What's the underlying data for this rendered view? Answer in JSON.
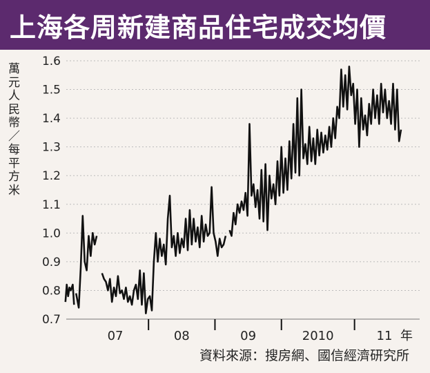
{
  "title": "上海各周新建商品住宅成交均價",
  "source": "資料來源：搜房網、國信經濟研究所",
  "colors": {
    "title_bg": "#5c2a6e",
    "line": "#111111",
    "grid": "#bbbbbb"
  },
  "chart_data": {
    "type": "line",
    "title": "上海各周新建商品住宅成交均價",
    "ylabel": "萬元人民幣／每平方米",
    "xlabel": "年",
    "ylim": [
      0.7,
      1.6
    ],
    "yticks": [
      0.7,
      0.8,
      0.9,
      1.0,
      1.1,
      1.2,
      1.3,
      1.4,
      1.5,
      1.6
    ],
    "ytick_labels": [
      "0.7",
      "0.8",
      "0.9",
      "1.0",
      "1.1",
      "1.2",
      "1.3",
      "1.4",
      "1.5",
      "1.6"
    ],
    "xlim": [
      2006.45,
      2011.83
    ],
    "x_labels": [
      {
        "label": "07",
        "x": 2007.25
      },
      {
        "label": "08",
        "x": 2008.25
      },
      {
        "label": "09",
        "x": 2009.25
      },
      {
        "label": "2010",
        "x": 2010.3
      },
      {
        "label": "11",
        "x": 2011.3
      }
    ],
    "x_ticks": [
      2007.75,
      2008.75,
      2009.75,
      2010.85
    ],
    "segments": [
      [
        [
          2006.5,
          0.76
        ],
        [
          2006.52,
          0.82
        ],
        [
          2006.54,
          0.78
        ],
        [
          2006.56,
          0.81
        ],
        [
          2006.58,
          0.8
        ],
        [
          2006.61,
          0.82
        ],
        [
          2006.63,
          0.75
        ]
      ],
      [
        [
          2006.66,
          0.79
        ],
        [
          2006.7,
          0.74
        ],
        [
          2006.73,
          0.88
        ],
        [
          2006.76,
          1.06
        ],
        [
          2006.79,
          0.9
        ],
        [
          2006.82,
          0.87
        ],
        [
          2006.85,
          0.99
        ],
        [
          2006.88,
          0.92
        ],
        [
          2006.91,
          1.0
        ],
        [
          2006.94,
          0.96
        ],
        [
          2006.97,
          0.99
        ]
      ],
      [
        [
          2007.05,
          0.86
        ],
        [
          2007.08,
          0.84
        ],
        [
          2007.11,
          0.83
        ],
        [
          2007.14,
          0.8
        ],
        [
          2007.17,
          0.84
        ],
        [
          2007.2,
          0.76
        ],
        [
          2007.23,
          0.81
        ],
        [
          2007.26,
          0.78
        ],
        [
          2007.29,
          0.85
        ],
        [
          2007.32,
          0.79
        ],
        [
          2007.35,
          0.8
        ],
        [
          2007.38,
          0.77
        ],
        [
          2007.41,
          0.81
        ],
        [
          2007.44,
          0.76
        ],
        [
          2007.47,
          0.78
        ],
        [
          2007.5,
          0.75
        ],
        [
          2007.53,
          0.8
        ],
        [
          2007.56,
          0.82
        ],
        [
          2007.59,
          0.77
        ],
        [
          2007.62,
          0.87
        ],
        [
          2007.65,
          0.75
        ],
        [
          2007.68,
          0.86
        ],
        [
          2007.71,
          0.72
        ],
        [
          2007.74,
          0.77
        ],
        [
          2007.77,
          0.78
        ],
        [
          2007.8,
          0.73
        ],
        [
          2007.83,
          0.9
        ],
        [
          2007.86,
          1.0
        ],
        [
          2007.89,
          0.9
        ],
        [
          2007.92,
          0.98
        ],
        [
          2007.95,
          0.92
        ],
        [
          2007.98,
          0.96
        ],
        [
          2008.01,
          0.89
        ],
        [
          2008.04,
          1.05
        ],
        [
          2008.07,
          1.13
        ],
        [
          2008.1,
          0.95
        ],
        [
          2008.13,
          0.99
        ],
        [
          2008.16,
          0.92
        ],
        [
          2008.19,
          1.0
        ],
        [
          2008.22,
          0.93
        ],
        [
          2008.25,
          0.98
        ],
        [
          2008.28,
          0.95
        ],
        [
          2008.31,
          1.05
        ],
        [
          2008.34,
          0.94
        ],
        [
          2008.37,
          1.08
        ],
        [
          2008.4,
          0.96
        ],
        [
          2008.43,
          1.05
        ],
        [
          2008.46,
          0.97
        ],
        [
          2008.49,
          1.02
        ],
        [
          2008.52,
          0.95
        ],
        [
          2008.55,
          1.06
        ],
        [
          2008.58,
          0.97
        ],
        [
          2008.61,
          1.03
        ],
        [
          2008.64,
          0.99
        ],
        [
          2008.67,
          1.0
        ],
        [
          2008.7,
          1.16
        ],
        [
          2008.73,
          1.0
        ],
        [
          2008.76,
          0.97
        ],
        [
          2008.79,
          0.92
        ],
        [
          2008.82,
          0.98
        ],
        [
          2008.85,
          0.95
        ],
        [
          2008.88,
          0.96
        ],
        [
          2008.91,
          0.99
        ]
      ],
      [
        [
          2008.97,
          1.01
        ],
        [
          2009.0,
          0.99
        ],
        [
          2009.03,
          1.07
        ],
        [
          2009.06,
          1.03
        ],
        [
          2009.09,
          1.1
        ],
        [
          2009.12,
          1.07
        ],
        [
          2009.15,
          1.11
        ],
        [
          2009.18,
          1.08
        ],
        [
          2009.21,
          1.14
        ],
        [
          2009.24,
          1.06
        ],
        [
          2009.27,
          1.38
        ],
        [
          2009.3,
          1.13
        ],
        [
          2009.33,
          1.17
        ],
        [
          2009.36,
          1.09
        ],
        [
          2009.39,
          1.15
        ],
        [
          2009.42,
          1.05
        ],
        [
          2009.45,
          1.22
        ],
        [
          2009.48,
          1.04
        ],
        [
          2009.51,
          1.24
        ],
        [
          2009.54,
          1.01
        ],
        [
          2009.57,
          1.2
        ],
        [
          2009.6,
          1.12
        ],
        [
          2009.63,
          1.17
        ],
        [
          2009.66,
          1.1
        ],
        [
          2009.69,
          1.25
        ],
        [
          2009.72,
          1.13
        ],
        [
          2009.75,
          1.3
        ],
        [
          2009.78,
          1.14
        ],
        [
          2009.81,
          1.26
        ],
        [
          2009.84,
          1.15
        ],
        [
          2009.87,
          1.32
        ],
        [
          2009.9,
          1.19
        ],
        [
          2009.93,
          1.38
        ],
        [
          2009.96,
          1.21
        ],
        [
          2009.99,
          1.47
        ],
        [
          2010.02,
          1.2
        ],
        [
          2010.05,
          1.5
        ],
        [
          2010.08,
          1.26
        ],
        [
          2010.11,
          1.31
        ],
        [
          2010.14,
          1.24
        ],
        [
          2010.17,
          1.37
        ],
        [
          2010.2,
          1.25
        ],
        [
          2010.23,
          1.33
        ],
        [
          2010.26,
          1.24
        ],
        [
          2010.29,
          1.36
        ],
        [
          2010.32,
          1.27
        ],
        [
          2010.35,
          1.35
        ],
        [
          2010.38,
          1.28
        ],
        [
          2010.41,
          1.34
        ],
        [
          2010.44,
          1.29
        ],
        [
          2010.47,
          1.37
        ],
        [
          2010.5,
          1.3
        ],
        [
          2010.53,
          1.4
        ],
        [
          2010.56,
          1.33
        ],
        [
          2010.59,
          1.44
        ],
        [
          2010.62,
          1.4
        ],
        [
          2010.65,
          1.57
        ],
        [
          2010.68,
          1.44
        ],
        [
          2010.71,
          1.55
        ],
        [
          2010.74,
          1.43
        ],
        [
          2010.77,
          1.58
        ],
        [
          2010.8,
          1.48
        ],
        [
          2010.83,
          1.52
        ],
        [
          2010.86,
          1.38
        ],
        [
          2010.89,
          1.5
        ],
        [
          2010.92,
          1.3
        ],
        [
          2010.95,
          1.47
        ],
        [
          2010.98,
          1.36
        ],
        [
          2011.01,
          1.41
        ],
        [
          2011.04,
          1.34
        ],
        [
          2011.07,
          1.45
        ],
        [
          2011.1,
          1.38
        ],
        [
          2011.13,
          1.5
        ],
        [
          2011.16,
          1.4
        ],
        [
          2011.19,
          1.48
        ],
        [
          2011.22,
          1.38
        ],
        [
          2011.25,
          1.52
        ],
        [
          2011.28,
          1.42
        ],
        [
          2011.31,
          1.5
        ],
        [
          2011.34,
          1.4
        ],
        [
          2011.37,
          1.46
        ],
        [
          2011.4,
          1.38
        ],
        [
          2011.43,
          1.52
        ],
        [
          2011.46,
          1.36
        ],
        [
          2011.49,
          1.5
        ],
        [
          2011.52,
          1.32
        ],
        [
          2011.55,
          1.36
        ]
      ]
    ]
  }
}
